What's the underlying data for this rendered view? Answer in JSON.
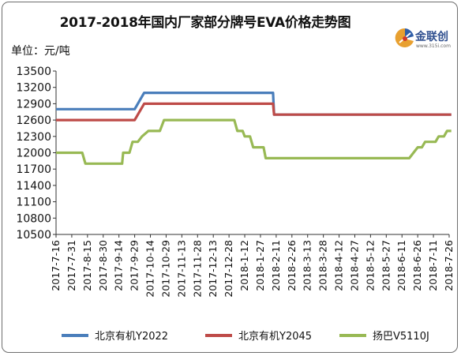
{
  "chart_data": {
    "type": "line",
    "title": "2017-2018年国内厂家部分牌号EVA价格走势图",
    "unit_label": "单位：元/吨",
    "ylim": [
      10500,
      13500
    ],
    "yticks": [
      10500,
      10800,
      11100,
      11400,
      11700,
      12000,
      12300,
      12600,
      12900,
      13200,
      13500
    ],
    "categories": [
      "2017-7-16",
      "2017-7-31",
      "2017-8-15",
      "2017-8-30",
      "2017-9-14",
      "2017-9-29",
      "2017-10-14",
      "2017-10-29",
      "2017-11-13",
      "2017-11-28",
      "2017-12-13",
      "2017-12-28",
      "2018-1-12",
      "2018-1-27",
      "2018-2-11",
      "2018-2-26",
      "2018-3-13",
      "2018-3-28",
      "2018-4-12",
      "2018-4-27",
      "2018-5-12",
      "2018-5-27",
      "2018-6-11",
      "2018-6-26",
      "2018-7-11",
      "2018-7-26"
    ],
    "grid": false,
    "legend_position": "bottom",
    "series": [
      {
        "name": "北京有机Y2022",
        "color": "#4a7ebb",
        "points": [
          [
            "2017-7-16",
            12800
          ],
          [
            "2017-9-29",
            12800
          ],
          [
            "2017-10-8",
            13100
          ],
          [
            "2018-2-8",
            13100
          ],
          [
            "2018-2-9",
            12700
          ],
          [
            "2018-7-28",
            12700
          ]
        ]
      },
      {
        "name": "北京有机Y2045",
        "color": "#be4b48",
        "points": [
          [
            "2017-7-16",
            12600
          ],
          [
            "2017-9-29",
            12600
          ],
          [
            "2017-10-8",
            12900
          ],
          [
            "2018-2-8",
            12900
          ],
          [
            "2018-2-9",
            12700
          ],
          [
            "2018-7-28",
            12700
          ]
        ]
      },
      {
        "name": "扬巴V5110J",
        "color": "#98b954",
        "points": [
          [
            "2017-7-16",
            12000
          ],
          [
            "2017-8-10",
            12000
          ],
          [
            "2017-8-13",
            11800
          ],
          [
            "2017-9-17",
            11800
          ],
          [
            "2017-9-18",
            12000
          ],
          [
            "2017-9-24",
            12000
          ],
          [
            "2017-9-27",
            12200
          ],
          [
            "2017-10-2",
            12200
          ],
          [
            "2017-10-6",
            12300
          ],
          [
            "2017-10-12",
            12400
          ],
          [
            "2017-10-23",
            12400
          ],
          [
            "2017-10-27",
            12600
          ],
          [
            "2018-1-2",
            12600
          ],
          [
            "2018-1-5",
            12400
          ],
          [
            "2018-1-10",
            12400
          ],
          [
            "2018-1-12",
            12300
          ],
          [
            "2018-1-17",
            12300
          ],
          [
            "2018-1-20",
            12100
          ],
          [
            "2018-1-30",
            12100
          ],
          [
            "2018-2-1",
            11900
          ],
          [
            "2018-6-18",
            11900
          ],
          [
            "2018-6-22",
            12000
          ],
          [
            "2018-6-26",
            12100
          ],
          [
            "2018-6-30",
            12100
          ],
          [
            "2018-7-3",
            12200
          ],
          [
            "2018-7-13",
            12200
          ],
          [
            "2018-7-16",
            12300
          ],
          [
            "2018-7-21",
            12300
          ],
          [
            "2018-7-24",
            12400
          ],
          [
            "2018-7-28",
            12400
          ]
        ]
      }
    ]
  },
  "logo": {
    "name": "金联创",
    "url": "www.315i.com"
  }
}
